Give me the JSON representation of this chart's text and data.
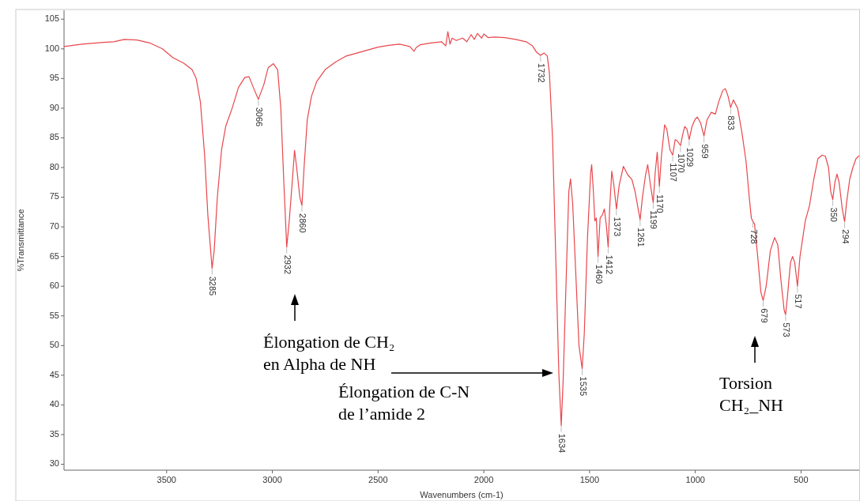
{
  "chart_data": {
    "type": "line",
    "xlabel": "Wavenumbers (cm-1)",
    "ylabel": "%Transmittance",
    "xlim": [
      3985,
      225
    ],
    "ylim": [
      29,
      106.5
    ],
    "xticks": [
      3500,
      3000,
      2500,
      2000,
      1500,
      1000,
      500
    ],
    "yticks": [
      30,
      35,
      40,
      45,
      50,
      55,
      60,
      65,
      70,
      75,
      80,
      85,
      90,
      95,
      100,
      105
    ],
    "grid": false,
    "marker": "none",
    "line_style": "solid",
    "series": [
      {
        "color": "#e8474c",
        "x": [
          3985,
          3900,
          3800,
          3750,
          3700,
          3640,
          3580,
          3520,
          3470,
          3420,
          3380,
          3360,
          3340,
          3320,
          3305,
          3285,
          3275,
          3260,
          3240,
          3220,
          3190,
          3160,
          3130,
          3110,
          3090,
          3066,
          3040,
          3020,
          2995,
          2975,
          2960,
          2945,
          2932,
          2920,
          2905,
          2895,
          2885,
          2870,
          2860,
          2850,
          2835,
          2815,
          2790,
          2750,
          2700,
          2650,
          2600,
          2550,
          2500,
          2450,
          2400,
          2350,
          2330,
          2320,
          2300,
          2250,
          2200,
          2180,
          2170,
          2160,
          2150,
          2130,
          2100,
          2080,
          2060,
          2045,
          2030,
          2010,
          2000,
          1980,
          1950,
          1900,
          1850,
          1800,
          1770,
          1750,
          1732,
          1715,
          1700,
          1690,
          1675,
          1660,
          1645,
          1634,
          1625,
          1610,
          1598,
          1590,
          1580,
          1565,
          1550,
          1535,
          1525,
          1510,
          1495,
          1490,
          1482,
          1475,
          1468,
          1460,
          1450,
          1440,
          1430,
          1420,
          1412,
          1405,
          1395,
          1385,
          1373,
          1360,
          1340,
          1320,
          1300,
          1285,
          1270,
          1261,
          1250,
          1235,
          1225,
          1212,
          1199,
          1190,
          1180,
          1170,
          1160,
          1145,
          1135,
          1120,
          1107,
          1095,
          1085,
          1070,
          1060,
          1050,
          1040,
          1029,
          1015,
          1000,
          990,
          975,
          959,
          945,
          925,
          905,
          890,
          870,
          858,
          845,
          833,
          820,
          800,
          780,
          760,
          745,
          735,
          728,
          720,
          705,
          690,
          679,
          665,
          645,
          625,
          610,
          595,
          580,
          573,
          565,
          550,
          540,
          530,
          517,
          505,
          480,
          460,
          440,
          420,
          400,
          385,
          370,
          360,
          350,
          340,
          330,
          320,
          305,
          294,
          285,
          270,
          255,
          240,
          225
        ],
        "values": [
          100.4,
          100.8,
          101.1,
          101.2,
          101.6,
          101.5,
          101.0,
          100.0,
          98.5,
          97.6,
          96.5,
          95,
          91,
          82,
          72,
          63.0,
          66,
          75,
          83,
          87,
          90,
          93.5,
          95.2,
          95.3,
          93.5,
          91.5,
          94,
          96.8,
          97.5,
          96.5,
          90,
          77,
          66.6,
          71,
          78,
          82.9,
          80,
          75,
          73.6,
          80,
          88,
          92,
          94.5,
          96.5,
          97.8,
          98.8,
          99.3,
          99.8,
          100.3,
          100.6,
          100.8,
          100.4,
          99.6,
          100.2,
          100.7,
          101.0,
          101.2,
          100.5,
          102.9,
          100.8,
          101.8,
          101.4,
          101.8,
          101.2,
          102.4,
          101.6,
          102.6,
          101.8,
          102.5,
          101.9,
          102.0,
          101.9,
          101.6,
          101.2,
          100.5,
          99.4,
          98.9,
          99.3,
          98.8,
          96,
          85,
          65,
          45,
          36.5,
          44,
          62,
          76,
          78.1,
          74,
          62,
          50,
          46.1,
          52,
          68,
          79,
          80.5,
          76,
          71,
          71.5,
          65,
          71.5,
          72,
          73,
          70,
          66.6,
          73,
          79.4,
          77,
          73,
          77,
          80.2,
          78.8,
          78,
          76,
          73,
          71.2,
          75,
          78.8,
          80.5,
          77,
          74.1,
          79,
          82.6,
          76.8,
          82,
          87.2,
          86.5,
          83,
          82.1,
          84.7,
          84.5,
          83.7,
          85.5,
          86.9,
          86.5,
          84.7,
          87,
          88.2,
          88.5,
          87.5,
          85.3,
          88,
          89.3,
          89.0,
          91,
          93.0,
          93.3,
          92,
          90.1,
          91.4,
          90,
          86,
          81,
          75,
          71.5,
          70.9,
          70.5,
          65,
          59,
          57.6,
          60,
          66,
          68.2,
          67,
          61,
          56,
          55.2,
          58,
          64,
          65.0,
          64,
          60,
          65,
          71,
          73.6,
          78,
          81.5,
          82.1,
          81.9,
          80,
          76,
          74.6,
          77.5,
          78.9,
          77.5,
          73,
          70.9,
          74,
          78,
          80,
          81.5,
          82
        ]
      }
    ],
    "annotations": [
      "Élongation de CH₂\nen Alpha de NH",
      "Élongation de C-N\nde l’amide 2",
      "Torsion\nCH₂_NH",
      {
        "text": "3285",
        "x": 3285,
        "y": 63.0
      },
      {
        "text": "3066",
        "x": 3066,
        "y": 91.5
      },
      {
        "text": "2932",
        "x": 2932,
        "y": 66.6
      },
      {
        "text": "2860",
        "x": 2860,
        "y": 73.6
      },
      {
        "text": "1732",
        "x": 1732,
        "y": 98.9
      },
      {
        "text": "1634",
        "x": 1634,
        "y": 36.5
      },
      {
        "text": "1535",
        "x": 1535,
        "y": 46.1
      },
      {
        "text": "1460",
        "x": 1460,
        "y": 65
      },
      {
        "text": "1412",
        "x": 1412,
        "y": 66.6
      },
      {
        "text": "1373",
        "x": 1373,
        "y": 73
      },
      {
        "text": "1261",
        "x": 1261,
        "y": 71.2
      },
      {
        "text": "1199",
        "x": 1199,
        "y": 74.1
      },
      {
        "text": "1170",
        "x": 1170,
        "y": 76.8
      },
      {
        "text": "1107",
        "x": 1107,
        "y": 82.1
      },
      {
        "text": "1070",
        "x": 1070,
        "y": 83.7
      },
      {
        "text": "1029",
        "x": 1029,
        "y": 84.7
      },
      {
        "text": "959",
        "x": 959,
        "y": 85.3
      },
      {
        "text": "833",
        "x": 833,
        "y": 90.1
      },
      {
        "text": "728",
        "x": 728,
        "y": 70.9
      },
      {
        "text": "679",
        "x": 679,
        "y": 57.6
      },
      {
        "text": "573",
        "x": 573,
        "y": 55.2
      },
      {
        "text": "517",
        "x": 517,
        "y": 60
      },
      {
        "text": "350",
        "x": 350,
        "y": 74.6
      },
      {
        "text": "294",
        "x": 294,
        "y": 70.9
      }
    ]
  }
}
